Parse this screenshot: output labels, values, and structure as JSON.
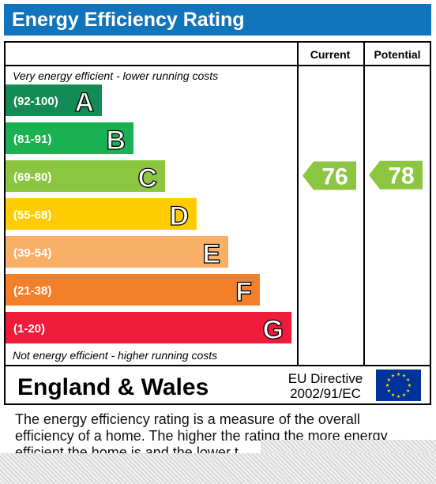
{
  "header": {
    "title": "Energy Efficiency Rating"
  },
  "table": {
    "col_current": "Current",
    "col_potential": "Potential",
    "top_note": "Very energy efficient - lower running costs",
    "bottom_note": "Not energy efficient - higher running costs",
    "footer_region": "England & Wales",
    "footer_directive_line1": "EU Directive",
    "footer_directive_line2": "2002/91/EC"
  },
  "chart_data": {
    "type": "bar",
    "bands": [
      {
        "range": "(92-100)",
        "letter": "A",
        "color": "#138b55",
        "level": 1
      },
      {
        "range": "(81-91)",
        "letter": "B",
        "color": "#1ab153",
        "level": 2
      },
      {
        "range": "(69-80)",
        "letter": "C",
        "color": "#8cc641",
        "level": 3
      },
      {
        "range": "(55-68)",
        "letter": "D",
        "color": "#ffcc03",
        "level": 4
      },
      {
        "range": "(39-54)",
        "letter": "E",
        "color": "#f8af68",
        "level": 5
      },
      {
        "range": "(21-38)",
        "letter": "F",
        "color": "#f2802b",
        "level": 6
      },
      {
        "range": "(1-20)",
        "letter": "G",
        "color": "#ee1c3a",
        "level": 7
      }
    ],
    "current": {
      "value": 76,
      "band": "C",
      "color": "#8cc641"
    },
    "potential": {
      "value": 78,
      "band": "C",
      "color": "#8cc641"
    }
  },
  "description": {
    "line1": "The energy efficiency rating is a measure of the overall",
    "line2": "efficiency of a home.  The higher the rating the more energy",
    "line3": "efficient the home is and the lower t"
  }
}
